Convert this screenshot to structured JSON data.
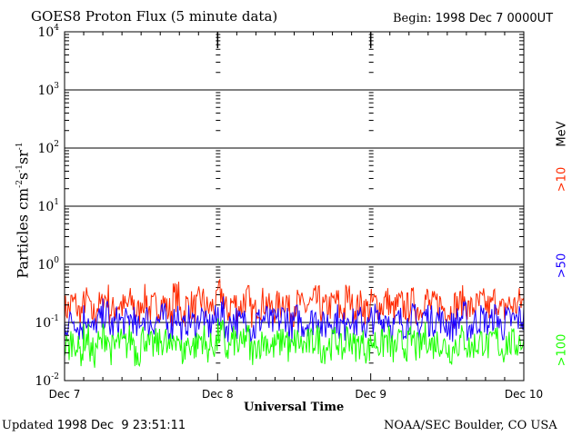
{
  "chart_data": {
    "type": "line",
    "title": "GOES8 Proton Flux (5 minute data)",
    "begin_label": "Begin:",
    "begin_value": "1998 Dec 7 0000UT",
    "xlabel": "Universal Time",
    "ylabel": "Particles cm",
    "ylabel_sup1": "-2",
    "ylabel_s": "s",
    "ylabel_sup2": "-1",
    "ylabel_sr": "sr",
    "ylabel_sup3": "-1",
    "yscale": "log",
    "ylim": [
      0.01,
      10000
    ],
    "yticks": [
      {
        "base": "10",
        "exp": "-2",
        "value": 0.01
      },
      {
        "base": "10",
        "exp": "-1",
        "value": 0.1
      },
      {
        "base": "10",
        "exp": "0",
        "value": 1
      },
      {
        "base": "10",
        "exp": "1",
        "value": 10
      },
      {
        "base": "10",
        "exp": "2",
        "value": 100
      },
      {
        "base": "10",
        "exp": "3",
        "value": 1000
      },
      {
        "base": "10",
        "exp": "4",
        "value": 10000
      }
    ],
    "xticks": [
      "Dec 7",
      "Dec 8",
      "Dec 9",
      "Dec 10"
    ],
    "xlim": [
      "1998-12-07 00:00",
      "1998-12-10 00:00"
    ],
    "grid": true,
    "unit_label": "MeV",
    "series": [
      {
        "name": ">10",
        "color": "#ff2a00",
        "values": [
          0.16,
          0.2,
          0.14,
          0.22,
          0.13,
          0.18,
          0.25,
          0.15,
          0.19,
          0.17,
          0.21,
          0.14,
          0.23,
          0.16,
          0.18,
          0.2,
          0.15,
          0.26,
          0.14,
          0.19,
          0.17,
          0.22,
          0.16,
          0.18,
          0.3,
          0.15,
          0.2,
          0.17,
          0.24,
          0.14,
          0.19,
          0.21,
          0.16,
          0.18,
          0.23,
          0.15,
          0.2,
          0.17,
          0.19,
          0.22,
          0.16,
          0.18,
          0.21,
          0.15,
          0.25,
          0.17,
          0.19,
          0.16,
          0.2,
          0.18,
          0.22,
          0.15,
          0.19,
          0.17,
          0.21,
          0.16,
          0.24,
          0.18,
          0.2,
          0.17,
          0.15,
          0.19,
          0.22,
          0.16,
          0.18,
          0.2,
          0.17,
          0.23,
          0.15,
          0.19,
          0.18,
          0.21
        ]
      },
      {
        "name": ">50",
        "color": "#1a00ff",
        "values": [
          0.09,
          0.11,
          0.08,
          0.12,
          0.07,
          0.1,
          0.13,
          0.08,
          0.1,
          0.09,
          0.11,
          0.07,
          0.12,
          0.09,
          0.1,
          0.11,
          0.08,
          0.13,
          0.07,
          0.1,
          0.09,
          0.12,
          0.08,
          0.1,
          0.14,
          0.08,
          0.11,
          0.09,
          0.12,
          0.07,
          0.1,
          0.11,
          0.09,
          0.1,
          0.12,
          0.08,
          0.11,
          0.09,
          0.1,
          0.12,
          0.08,
          0.1,
          0.11,
          0.08,
          0.13,
          0.09,
          0.1,
          0.08,
          0.11,
          0.1,
          0.12,
          0.08,
          0.1,
          0.09,
          0.11,
          0.08,
          0.12,
          0.1,
          0.11,
          0.09,
          0.08,
          0.1,
          0.12,
          0.08,
          0.1,
          0.11,
          0.09,
          0.12,
          0.08,
          0.1,
          0.1,
          0.11
        ]
      },
      {
        "name": ">100",
        "color": "#1aff00",
        "values": [
          0.035,
          0.045,
          0.03,
          0.05,
          0.028,
          0.04,
          0.055,
          0.032,
          0.042,
          0.038,
          0.048,
          0.03,
          0.052,
          0.036,
          0.04,
          0.046,
          0.033,
          0.056,
          0.029,
          0.041,
          0.037,
          0.05,
          0.034,
          0.04,
          0.06,
          0.032,
          0.044,
          0.036,
          0.051,
          0.03,
          0.041,
          0.046,
          0.035,
          0.04,
          0.05,
          0.033,
          0.044,
          0.037,
          0.041,
          0.049,
          0.034,
          0.039,
          0.046,
          0.032,
          0.054,
          0.036,
          0.041,
          0.034,
          0.044,
          0.039,
          0.048,
          0.032,
          0.041,
          0.037,
          0.046,
          0.034,
          0.052,
          0.039,
          0.044,
          0.037,
          0.032,
          0.041,
          0.049,
          0.034,
          0.039,
          0.045,
          0.036,
          0.05,
          0.033,
          0.041,
          0.04,
          0.046
        ]
      }
    ]
  },
  "footer": {
    "updated_label": "Updated",
    "updated_value": "1998 Dec  9 23:51:11",
    "credit": "NOAA/SEC Boulder, CO USA"
  }
}
